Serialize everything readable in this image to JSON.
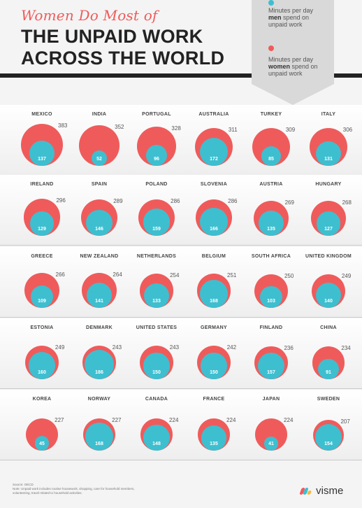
{
  "header": {
    "subtitle": "Women Do Most of",
    "title_line1": "THE UNPAID WORK",
    "title_line2": "ACROSS THE WORLD"
  },
  "legend": {
    "men_line1": "Minutes per day",
    "men_bold": "men",
    "men_line2": "spend on",
    "men_line3": "unpaid work",
    "women_line1": "Minutes per day",
    "women_bold": "women",
    "women_line2": "spend on",
    "women_line3": "unpaid work"
  },
  "colors": {
    "women": "#ef5b5b",
    "men": "#3dbfd0"
  },
  "chart_data": {
    "type": "bubble",
    "title": "THE UNPAID WORK ACROSS THE WORLD",
    "series": [
      {
        "name": "women",
        "values": [
          383,
          352,
          328,
          311,
          309,
          306,
          296,
          289,
          286,
          286,
          269,
          268,
          266,
          264,
          254,
          251,
          250,
          249,
          249,
          243,
          243,
          242,
          236,
          234,
          227,
          227,
          224,
          224,
          224,
          207
        ]
      },
      {
        "name": "men",
        "values": [
          137,
          52,
          96,
          172,
          85,
          131,
          129,
          146,
          159,
          166,
          135,
          127,
          109,
          141,
          133,
          168,
          103,
          140,
          160,
          186,
          150,
          150,
          157,
          91,
          45,
          168,
          148,
          135,
          41,
          154
        ]
      }
    ],
    "countries": [
      "MEXICO",
      "INDIA",
      "PORTUGAL",
      "AUSTRALIA",
      "TURKEY",
      "ITALY",
      "IRELAND",
      "SPAIN",
      "POLAND",
      "SLOVENIA",
      "AUSTRIA",
      "HUNGARY",
      "GREECE",
      "NEW ZEALAND",
      "NETHERLANDS",
      "BELGIUM",
      "SOUTH AFRICA",
      "UNITED KINGDOM",
      "ESTONIA",
      "DENMARK",
      "UNITED STATES",
      "GERMANY",
      "FINLAND",
      "CHINA",
      "KOREA",
      "NORWAY",
      "CANADA",
      "FRANCE",
      "JAPAN",
      "SWEDEN"
    ]
  },
  "footer": {
    "source": "Source: OECD",
    "note": "Note: Unpaid work includes routine housework, shopping, care for household members, volunteering, travel related to household activities.",
    "logo": "visme"
  }
}
